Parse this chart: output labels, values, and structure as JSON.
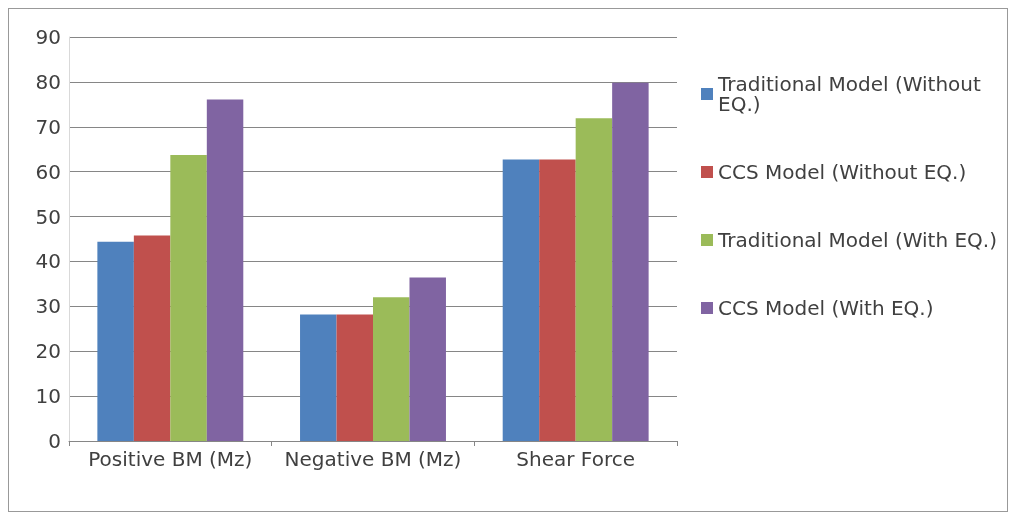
{
  "chart_data": {
    "type": "bar",
    "categories": [
      "Positive BM (Mz)",
      "Negative BM (Mz)",
      "Shear Force"
    ],
    "series": [
      {
        "name": "Traditional Model (Without EQ.)",
        "color": "#4f81bd",
        "values": [
          44.4,
          28.2,
          62.7
        ]
      },
      {
        "name": "CCS Model (Without EQ.)",
        "color": "#c0504d",
        "values": [
          45.8,
          28.2,
          62.7
        ]
      },
      {
        "name": "Traditional Model (With EQ.)",
        "color": "#9bbb59",
        "values": [
          63.7,
          32.0,
          71.9
        ]
      },
      {
        "name": "CCS Model (With EQ.)",
        "color": "#8064a2",
        "values": [
          76.1,
          36.4,
          79.8
        ]
      }
    ],
    "ylim": [
      0,
      90
    ],
    "yticks": [
      0,
      10,
      20,
      30,
      40,
      50,
      60,
      70,
      80,
      90
    ],
    "grid": "y",
    "legend": "right"
  }
}
